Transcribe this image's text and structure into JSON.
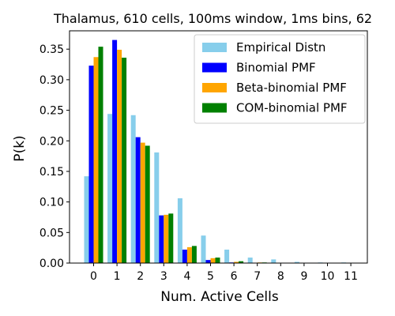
{
  "chart_data": {
    "type": "bar",
    "title": "Thalamus, 610 cells, 100ms window, 1ms bins, 62",
    "xlabel": "Num. Active Cells",
    "ylabel": "P(k)",
    "categories": [
      "0",
      "1",
      "2",
      "3",
      "4",
      "5",
      "6",
      "7",
      "8",
      "9",
      "10",
      "11"
    ],
    "ylim": [
      0,
      0.38
    ],
    "yticks": [
      "0.00",
      "0.05",
      "0.10",
      "0.15",
      "0.20",
      "0.25",
      "0.30",
      "0.35"
    ],
    "grid": false,
    "legend_position": "top-right",
    "series": [
      {
        "name": "Empirical Distn",
        "color": "#87ceeb",
        "values": [
          0.142,
          0.244,
          0.242,
          0.181,
          0.106,
          0.045,
          0.022,
          0.009,
          0.006,
          0.002,
          0.001,
          0.001
        ]
      },
      {
        "name": "Binomial PMF",
        "color": "#0000ff",
        "values": [
          0.323,
          0.365,
          0.206,
          0.078,
          0.022,
          0.005,
          0.001,
          0.0002,
          0.0,
          0.0,
          0.0,
          0.0
        ]
      },
      {
        "name": "Beta-binomial PMF",
        "color": "#ffa500",
        "values": [
          0.337,
          0.349,
          0.197,
          0.079,
          0.026,
          0.008,
          0.002,
          0.001,
          0.0,
          0.0,
          0.0,
          0.0
        ]
      },
      {
        "name": "COM-binomial PMF",
        "color": "#008000",
        "values": [
          0.354,
          0.336,
          0.192,
          0.081,
          0.028,
          0.009,
          0.003,
          0.001,
          0.0,
          0.0,
          0.0,
          0.0
        ]
      }
    ]
  }
}
